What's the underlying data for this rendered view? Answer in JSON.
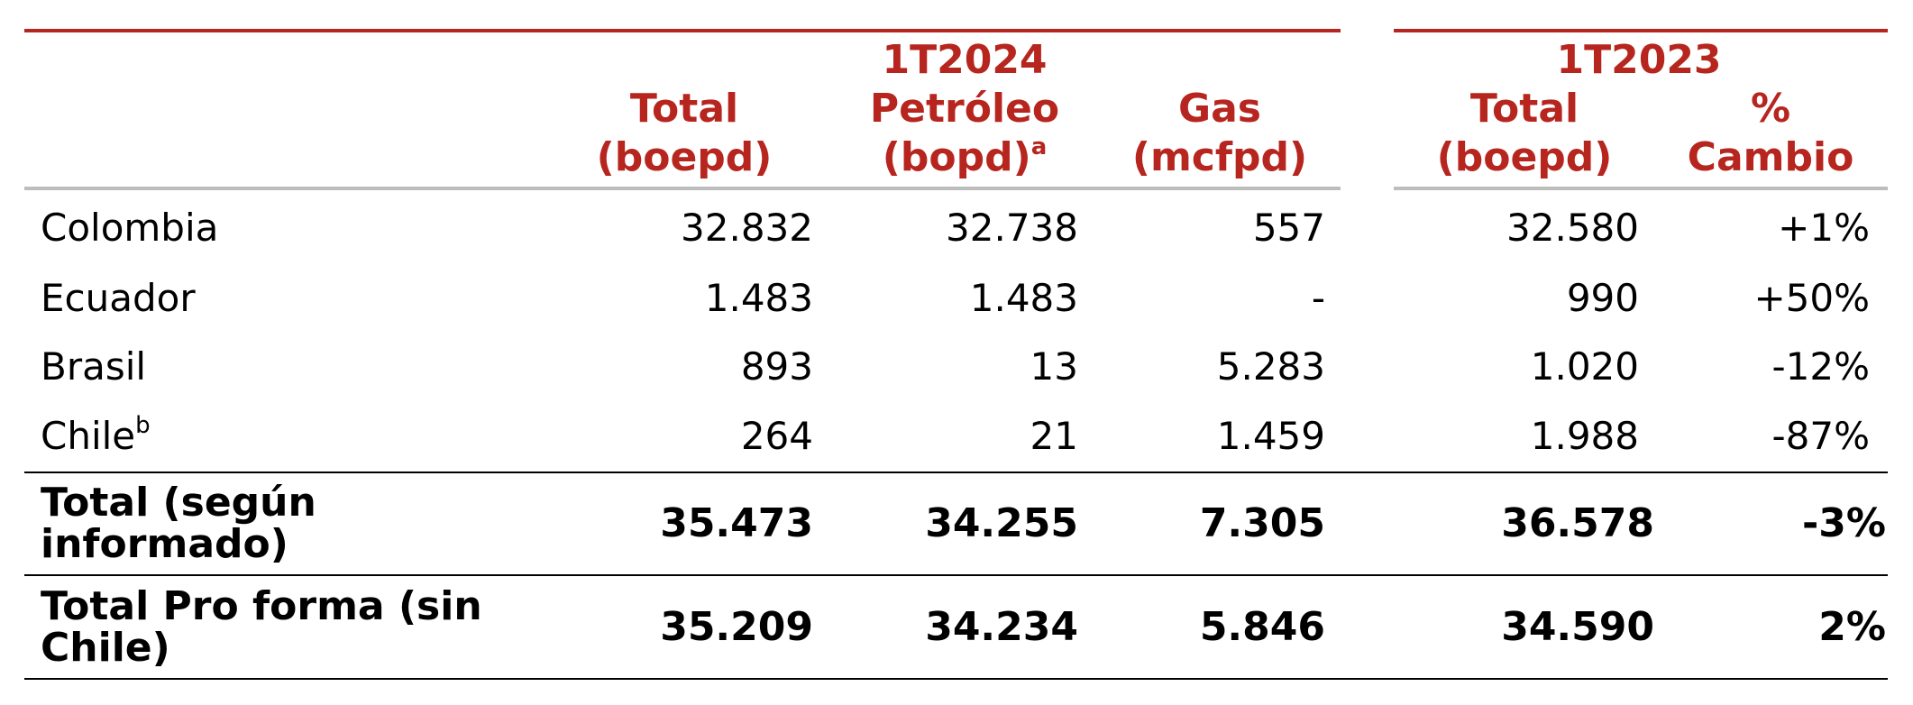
{
  "table": {
    "groups": [
      "1T2024",
      "1T2023"
    ],
    "columns": [
      {
        "lines": [
          "Total",
          "(boepd)"
        ]
      },
      {
        "lines": [
          "Petróleo",
          "(bopd)"
        ],
        "note": "a"
      },
      {
        "lines": [
          "Gas",
          "(mcfpd)"
        ]
      },
      {
        "lines": [
          "Total",
          "(boepd)"
        ]
      },
      {
        "lines": [
          "%",
          "Cambio"
        ]
      }
    ],
    "rows": [
      {
        "label": "Colombia",
        "cells": [
          "32.832",
          "32.738",
          "557",
          "32.580",
          "+1%"
        ]
      },
      {
        "label": "Ecuador",
        "cells": [
          "1.483",
          "1.483",
          "-",
          "990",
          "+50%"
        ]
      },
      {
        "label": "Brasil",
        "cells": [
          "893",
          "13",
          "5.283",
          "1.020",
          "-12%"
        ]
      },
      {
        "label": "Chile",
        "note": "b",
        "cells": [
          "264",
          "21",
          "1.459",
          "1.988",
          "-87%"
        ]
      },
      {
        "label": "Total (según informado)",
        "bold": true,
        "cells": [
          "35.473",
          "34.255",
          "7.305",
          "36.578",
          "-3%"
        ]
      },
      {
        "label": "Total Pro forma (sin Chile)",
        "bold": true,
        "cells": [
          "35.209",
          "34.234",
          "5.846",
          "34.590",
          "2%"
        ]
      }
    ]
  }
}
